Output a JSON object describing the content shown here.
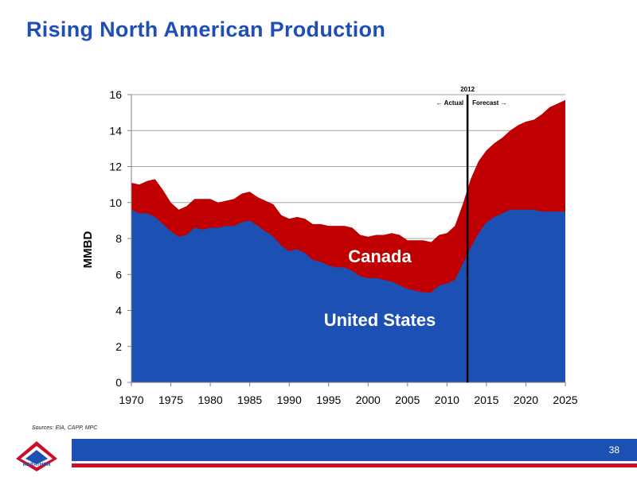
{
  "slide": {
    "title": "Rising North American Production",
    "sources": "Sources:  EIA, CAPP, MPC",
    "page_number": "38",
    "logo_text": "MARATHON"
  },
  "colors": {
    "us": "#1c51b3",
    "canada": "#c00000",
    "title": "#1f4fb4",
    "footer": "#1c51b3"
  },
  "chart_data": {
    "type": "area",
    "stacked": true,
    "ylabel": "MMBD",
    "ylim": [
      0,
      16
    ],
    "xlim": [
      1970,
      2025
    ],
    "yticks": [
      "0",
      "2",
      "4",
      "6",
      "8",
      "10",
      "12",
      "14",
      "16"
    ],
    "xticks": [
      "1970",
      "1975",
      "1980",
      "1985",
      "1990",
      "1995",
      "2000",
      "2005",
      "2010",
      "2015",
      "2020",
      "2025"
    ],
    "grid": true,
    "x": [
      1970,
      1971,
      1972,
      1973,
      1974,
      1975,
      1976,
      1977,
      1978,
      1979,
      1980,
      1981,
      1982,
      1983,
      1984,
      1985,
      1986,
      1987,
      1988,
      1989,
      1990,
      1991,
      1992,
      1993,
      1994,
      1995,
      1996,
      1997,
      1998,
      1999,
      2000,
      2001,
      2002,
      2003,
      2004,
      2005,
      2006,
      2007,
      2008,
      2009,
      2010,
      2011,
      2012,
      2013,
      2014,
      2015,
      2016,
      2017,
      2018,
      2019,
      2020,
      2021,
      2022,
      2023,
      2024,
      2025
    ],
    "series": [
      {
        "name": "United States",
        "values": [
          9.6,
          9.4,
          9.4,
          9.2,
          8.8,
          8.4,
          8.1,
          8.2,
          8.6,
          8.5,
          8.6,
          8.6,
          8.7,
          8.7,
          8.9,
          9.0,
          8.7,
          8.4,
          8.1,
          7.6,
          7.3,
          7.4,
          7.2,
          6.8,
          6.7,
          6.5,
          6.4,
          6.4,
          6.2,
          5.9,
          5.8,
          5.8,
          5.7,
          5.6,
          5.4,
          5.2,
          5.1,
          5.0,
          5.0,
          5.4,
          5.5,
          5.7,
          6.6,
          7.5,
          8.3,
          8.9,
          9.2,
          9.4,
          9.6,
          9.6,
          9.6,
          9.6,
          9.5,
          9.5,
          9.5,
          9.5
        ]
      },
      {
        "name": "Canada",
        "values": [
          1.5,
          1.6,
          1.8,
          2.1,
          1.9,
          1.6,
          1.5,
          1.6,
          1.6,
          1.7,
          1.6,
          1.4,
          1.4,
          1.5,
          1.6,
          1.6,
          1.6,
          1.7,
          1.8,
          1.7,
          1.8,
          1.8,
          1.9,
          2.0,
          2.1,
          2.2,
          2.3,
          2.3,
          2.4,
          2.3,
          2.3,
          2.4,
          2.5,
          2.7,
          2.8,
          2.7,
          2.8,
          2.9,
          2.8,
          2.8,
          2.8,
          3.0,
          3.3,
          3.8,
          4.0,
          4.0,
          4.1,
          4.2,
          4.4,
          4.7,
          4.9,
          5.0,
          5.4,
          5.8,
          6.0,
          6.2
        ]
      }
    ],
    "series_labels": [
      "Canada",
      "United States"
    ],
    "annotations": {
      "divider_year": "2012",
      "divider_x": 2012.6,
      "actual_label": "← Actual",
      "forecast_label": "Forecast →"
    }
  }
}
